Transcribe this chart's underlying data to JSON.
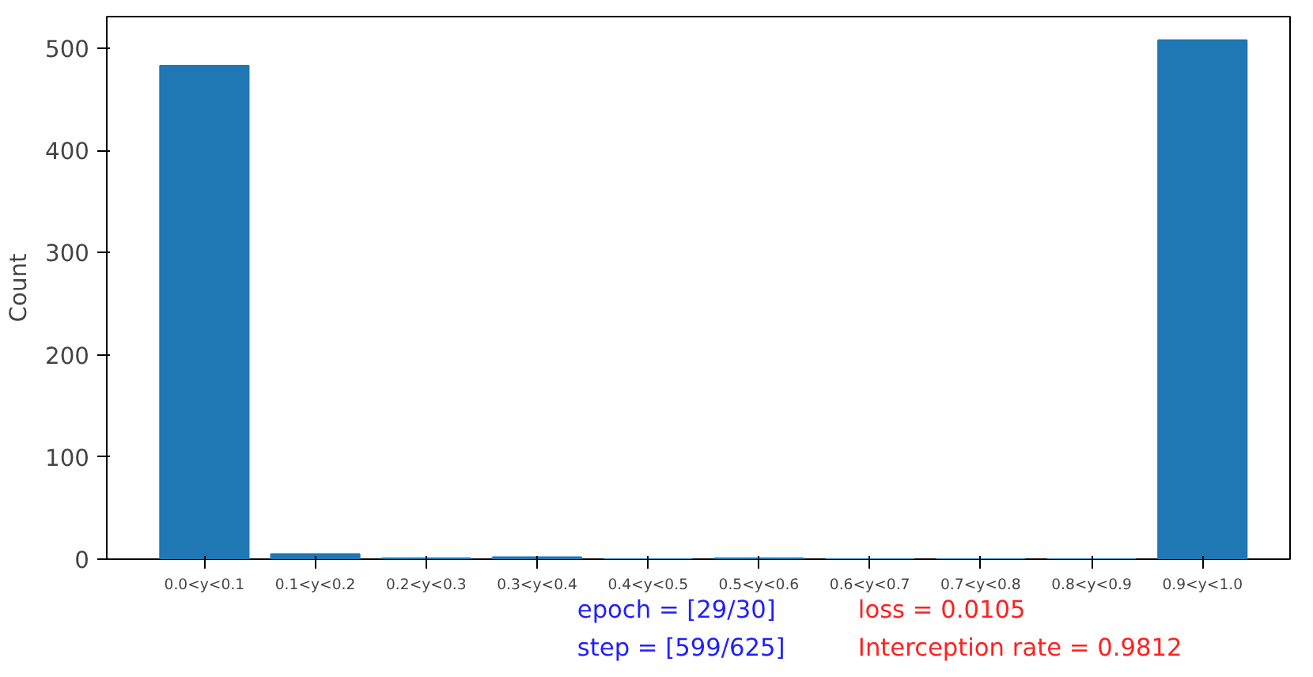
{
  "chart_data": {
    "type": "bar",
    "ylabel": "Count",
    "categories": [
      "0.0<y<0.1",
      "0.1<y<0.2",
      "0.2<y<0.3",
      "0.3<y<0.4",
      "0.4<y<0.5",
      "0.5<y<0.6",
      "0.6<y<0.7",
      "0.7<y<0.8",
      "0.8<y<0.9",
      "0.9<y<1.0"
    ],
    "values": [
      483,
      5,
      1,
      2,
      0,
      1,
      0,
      0,
      0,
      508
    ],
    "color": "#1f77b4",
    "ylim": [
      0,
      531
    ],
    "yticks": [
      0,
      100,
      200,
      300,
      400,
      500
    ],
    "grid": false,
    "annotations": [
      "epoch = [29/30]",
      "step = [599/625]",
      "loss = 0.0105",
      "Interception rate = 0.9812"
    ]
  }
}
